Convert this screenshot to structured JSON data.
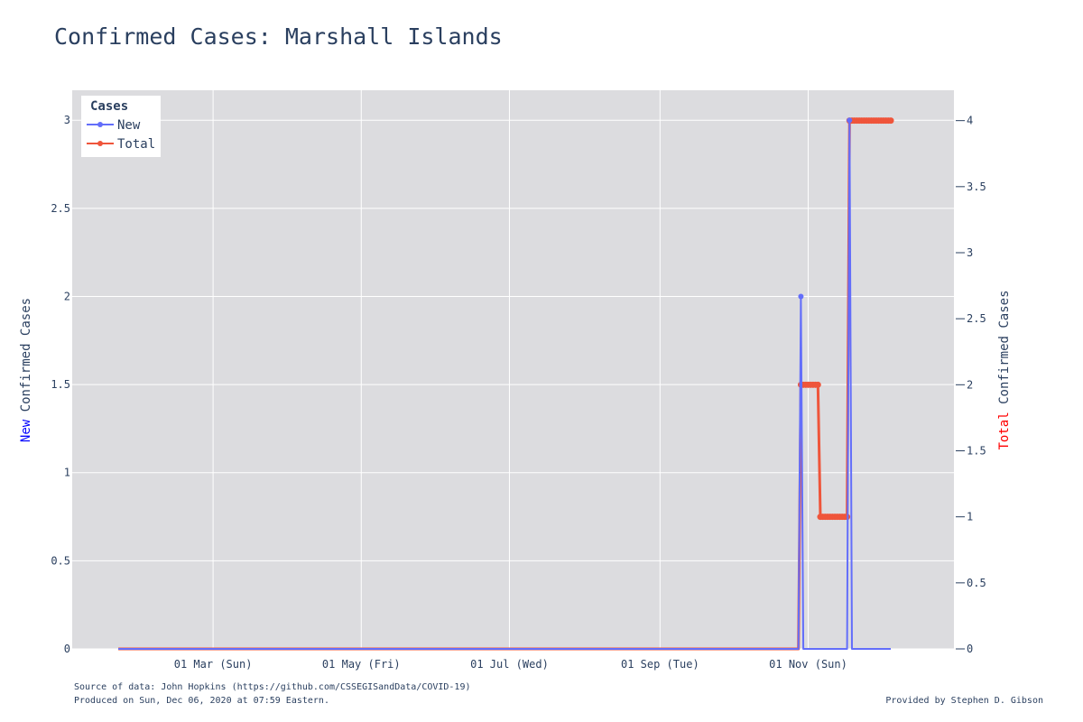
{
  "title": "Confirmed Cases: Marshall Islands",
  "footer": {
    "source": "Source of data: John Hopkins (https://github.com/CSSEGISandData/COVID-19)",
    "produced": "Produced on Sun, Dec 06, 2020 at 07:59 Eastern.",
    "credit": "Provided by Stephen D. Gibson"
  },
  "colors": {
    "new": "#636efa",
    "total": "#ef553b",
    "plot_bg": "#dcdcdf",
    "grid": "#ffffff",
    "text": "#2a3f5f"
  },
  "chart_data": {
    "type": "line",
    "title": "Confirmed Cases: Marshall Islands",
    "legend": {
      "title": "Cases",
      "placement": "top-left"
    },
    "xlabel": "",
    "x_tick_labels": [
      {
        "date": "2020-03-01",
        "label": "01 Mar (Sun)"
      },
      {
        "date": "2020-05-01",
        "label": "01 May (Fri)"
      },
      {
        "date": "2020-07-01",
        "label": "01 Jul (Wed)"
      },
      {
        "date": "2020-09-01",
        "label": "01 Sep (Tue)"
      },
      {
        "date": "2020-11-01",
        "label": "01 Nov (Sun)"
      }
    ],
    "xlim": [
      "2020-01-03",
      "2020-12-31"
    ],
    "y_left": {
      "label_prefix": "New",
      "label_rest": " Confirmed Cases",
      "range": [
        0,
        3.17
      ],
      "ticks": [
        0,
        0.5,
        1,
        1.5,
        2,
        2.5,
        3
      ],
      "tick_labels": [
        "0",
        "0.5",
        "1",
        "1.5",
        "2",
        "2.5",
        "3"
      ]
    },
    "y_right": {
      "label_prefix": "Total",
      "label_rest": " Confirmed Cases",
      "range": [
        0,
        4.23
      ],
      "ticks": [
        0,
        0.5,
        1,
        1.5,
        2,
        2.5,
        3,
        3.5,
        4
      ],
      "tick_labels": [
        "0",
        "0.5",
        "1",
        "1.5",
        "2",
        "2.5",
        "3",
        "3.5",
        "4"
      ]
    },
    "grid": true,
    "series": [
      {
        "name": "New",
        "axis": "left",
        "points": [
          [
            "2020-01-22",
            0
          ],
          [
            "2020-10-28",
            0
          ],
          [
            "2020-10-29",
            2
          ],
          [
            "2020-10-30",
            0
          ],
          [
            "2020-11-17",
            0
          ],
          [
            "2020-11-18",
            3
          ],
          [
            "2020-11-19",
            0
          ],
          [
            "2020-12-05",
            0
          ]
        ]
      },
      {
        "name": "Total",
        "axis": "right",
        "points": [
          [
            "2020-01-22",
            0
          ],
          [
            "2020-10-28",
            0
          ],
          [
            "2020-10-29",
            2
          ],
          [
            "2020-11-05",
            2
          ],
          [
            "2020-11-06",
            1
          ],
          [
            "2020-11-17",
            1
          ],
          [
            "2020-11-18",
            4
          ],
          [
            "2020-12-05",
            4
          ]
        ]
      }
    ]
  }
}
